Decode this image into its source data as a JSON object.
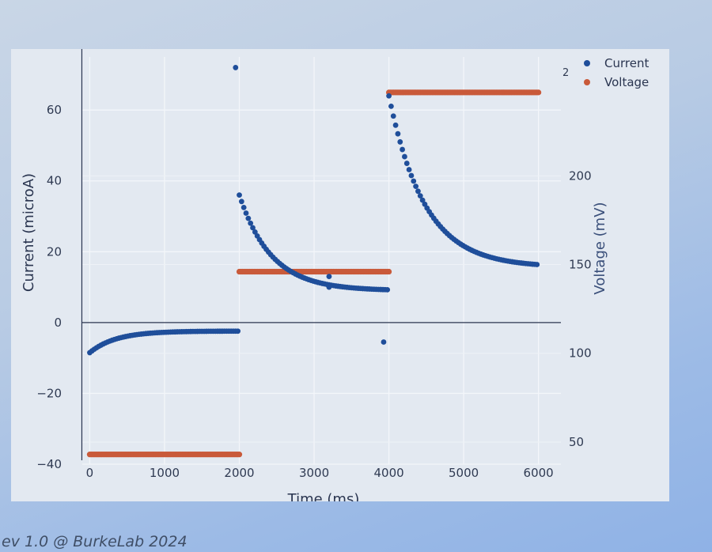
{
  "footer": "ev 1.0 @ BurkeLab 2024",
  "chart_data": {
    "type": "scatter",
    "xlabel": "Time (ms)",
    "ylabel": "Current (microA)",
    "y2label": "Voltage (mV)",
    "xlim": [
      -100,
      6300
    ],
    "ylim": [
      -40,
      75
    ],
    "y2lim": [
      37.5,
      267
    ],
    "x_ticks": [
      0,
      1000,
      2000,
      3000,
      4000,
      5000,
      6000
    ],
    "y_ticks": [
      -40,
      -20,
      0,
      20,
      40,
      60
    ],
    "y2_ticks": [
      50,
      100,
      150,
      200
    ],
    "y2_partial_tick": "2",
    "grid": true,
    "legend_position": "top-right",
    "series": [
      {
        "name": "Current",
        "axis": "left",
        "color": "#1f4e9a",
        "segments": [
          {
            "t_start": 0,
            "t_end": 2000,
            "start": -8.5,
            "end": -2.4,
            "tau": 350
          },
          {
            "t_start": 2000,
            "t_end": 4000,
            "start": 36,
            "end": 9,
            "tau": 430
          },
          {
            "t_start": 4000,
            "t_end": 6000,
            "start": 64,
            "end": 15.6,
            "tau": 480
          }
        ],
        "outliers": [
          [
            1950,
            72
          ],
          [
            3930,
            -5.5
          ],
          [
            3200,
            10
          ],
          [
            3200,
            13
          ]
        ]
      },
      {
        "name": "Voltage",
        "axis": "right",
        "color": "#c95a3a",
        "segments": [
          {
            "t_start": 0,
            "t_end": 2000,
            "value": 43
          },
          {
            "t_start": 2000,
            "t_end": 4000,
            "value": 146
          },
          {
            "t_start": 4000,
            "t_end": 6000,
            "value": 247
          }
        ]
      }
    ]
  }
}
